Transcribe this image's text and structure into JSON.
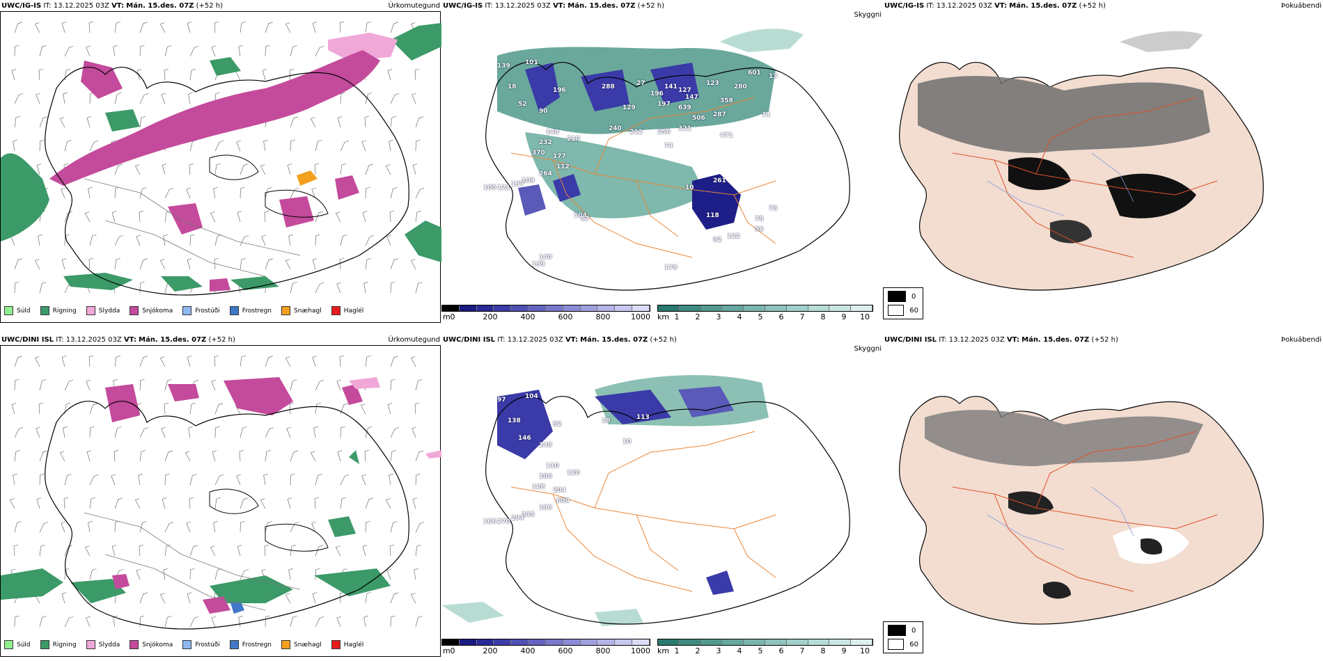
{
  "rows": [
    {
      "model": "UWC/IG-IS",
      "it_label": "IT:",
      "it_value": "13.12.2025 03Z",
      "vt_label": "VT:",
      "vt_value": "Mán. 15.des. 07Z",
      "lead": "(+52 h)",
      "labels": {
        "precip": "Úrkomutegund",
        "visibility": "Skyggni",
        "fog": "Þokuábendi"
      },
      "numbers": [
        "139",
        "101",
        "18",
        "52",
        "90",
        "196",
        "148",
        "210",
        "232",
        "370",
        "177",
        "112",
        "264",
        "109",
        "137",
        "121",
        "105",
        "288",
        "27",
        "129",
        "240",
        "212",
        "196",
        "141",
        "127",
        "147",
        "197",
        "639",
        "506",
        "321",
        "256",
        "74",
        "123",
        "358",
        "280",
        "601",
        "13",
        "287",
        "11",
        "471",
        "261",
        "10",
        "73",
        "118",
        "122",
        "92",
        "78",
        "56",
        "104",
        "57",
        "179",
        "140",
        "139"
      ]
    },
    {
      "model": "UWC/DINI ISL",
      "it_label": "IT:",
      "it_value": "13.12.2025 03Z",
      "vt_label": "VT:",
      "vt_value": "Mán. 15.des. 07Z",
      "lead": "(+52 h)",
      "labels": {
        "precip": "Úrkomutegund",
        "visibility": "Skyggni",
        "fog": "Þokuábendi"
      },
      "numbers": [
        "97",
        "104",
        "138",
        "146",
        "148",
        "52",
        "110",
        "120",
        "106",
        "128",
        "204",
        "609",
        "196",
        "235",
        "294",
        "270",
        "166",
        "18",
        "113",
        "10"
      ]
    }
  ],
  "precip_legend": [
    {
      "label": "Súld",
      "color": "#90ee90"
    },
    {
      "label": "Rigning",
      "color": "#3c9a68"
    },
    {
      "label": "Slydda",
      "color": "#f0a8d8"
    },
    {
      "label": "Snjókoma",
      "color": "#c44a9c"
    },
    {
      "label": "Frostúði",
      "color": "#8fb8f0"
    },
    {
      "label": "Frostregn",
      "color": "#3f78c8"
    },
    {
      "label": "Snæhagl",
      "color": "#f2a01e"
    },
    {
      "label": "Haglél",
      "color": "#e81c1c"
    }
  ],
  "vis_scale": {
    "m_unit": "m",
    "m_ticks": [
      "0",
      "200",
      "400",
      "600",
      "800",
      "1000"
    ],
    "km_unit": "km",
    "km_ticks": [
      "1",
      "2",
      "3",
      "4",
      "5",
      "6",
      "7",
      "8",
      "9",
      "10"
    ]
  },
  "fog_legend": [
    {
      "label": "0",
      "color": "#000000"
    },
    {
      "label": "60",
      "color": "#ffffff"
    }
  ]
}
